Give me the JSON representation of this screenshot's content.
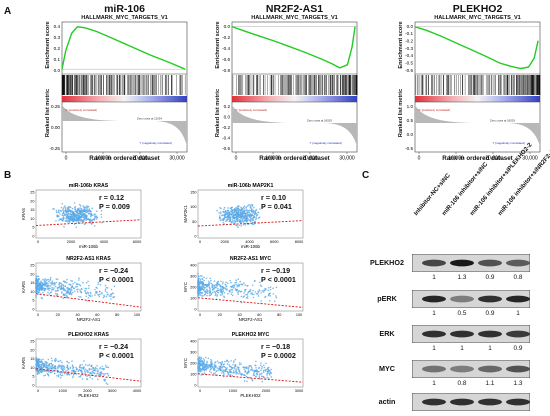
{
  "figure": {
    "panel_a": {
      "letter": "A",
      "plots": [
        {
          "title": "miR-106",
          "subtitle": "HALLMARK_MYC_TARGETS_V1",
          "es_label": "Enrichment score",
          "metric_label": "Ranked list metric",
          "x_label": "Rank in ordered dataset",
          "es_ticks": [
            "0.4",
            "0.3",
            "0.2",
            "0.1",
            "0.0"
          ],
          "metric_ticks": [
            "0.25",
            "0.00",
            "-0.25"
          ],
          "x_ticks": [
            "0",
            "10,000",
            "20,000",
            "30,000"
          ],
          "pos_label": "'h' (positively correlated)",
          "neg_label": "'l' (negatively correlated)",
          "zero_label": "Zero cross at 12034",
          "curve": "positive",
          "chart_data": {
            "type": "line",
            "xlabel": "Rank in ordered dataset",
            "ylabel": "Enrichment score",
            "x": [
              0,
              1000,
              2500,
              4000,
              6000,
              9000,
              13000,
              18000,
              23000,
              28000,
              32000
            ],
            "y": [
              0.0,
              0.2,
              0.38,
              0.45,
              0.44,
              0.4,
              0.33,
              0.24,
              0.15,
              0.07,
              0.0
            ],
            "ylim": [
              -0.03,
              0.48
            ],
            "xlim": [
              0,
              32500
            ]
          }
        },
        {
          "title": "NR2F2-AS1",
          "subtitle": "HALLMARK_MYC_TARGETS_V1",
          "es_label": "Enrichment score",
          "metric_label": "Ranked list metric",
          "x_label": "Rank in ordered dataset",
          "es_ticks": [
            "0.0",
            "-0.2",
            "-0.4",
            "-0.6",
            "-0.8"
          ],
          "metric_ticks": [
            "0.2",
            "0.0",
            "-0.2",
            "-0.4",
            "-0.6"
          ],
          "x_ticks": [
            "0",
            "10,000",
            "20,000",
            "30,000"
          ],
          "pos_label": "'h' (positively correlated)",
          "neg_label": "'l' (negatively correlated)",
          "zero_label": "Zero cross at 16529",
          "curve": "negative",
          "chart_data": {
            "type": "line",
            "xlabel": "Rank in ordered dataset",
            "ylabel": "Enrichment score",
            "x": [
              0,
              3000,
              7000,
              11000,
              15000,
              19000,
              23000,
              26000,
              28000,
              30000,
              31200,
              32000
            ],
            "y": [
              0.0,
              -0.08,
              -0.18,
              -0.28,
              -0.39,
              -0.5,
              -0.62,
              -0.72,
              -0.8,
              -0.74,
              -0.4,
              0.0
            ],
            "ylim": [
              -0.88,
              0.05
            ],
            "xlim": [
              0,
              32500
            ]
          }
        },
        {
          "title": "PLEKHO2",
          "subtitle": "HALLMARK_MYC_TARGETS_V1",
          "es_label": "Enrichment score",
          "metric_label": "Ranked list metric",
          "x_label": "Rank in ordered dataset",
          "es_ticks": [
            "0.0",
            "-0.1",
            "-0.2",
            "-0.3",
            "-0.4",
            "-0.5",
            "-0.6"
          ],
          "metric_ticks": [
            "1.0",
            "0.5",
            "0.0",
            "-0.5"
          ],
          "x_ticks": [
            "0",
            "10,000",
            "20,000",
            "30,000"
          ],
          "pos_label": "'h' (positively correlated)",
          "neg_label": "'l' (negatively correlated)",
          "zero_label": "Zero cross at 16529",
          "curve": "negative2",
          "chart_data": {
            "type": "line",
            "xlabel": "Rank in ordered dataset",
            "ylabel": "Enrichment score",
            "x": [
              0,
              3000,
              7000,
              11000,
              15000,
              19000,
              22000,
              25000,
              27500,
              29500,
              31000,
              32000
            ],
            "y": [
              0.0,
              -0.05,
              -0.14,
              -0.24,
              -0.34,
              -0.44,
              -0.52,
              -0.57,
              -0.6,
              -0.58,
              -0.45,
              -0.2
            ],
            "ylim": [
              -0.65,
              0.04
            ],
            "xlim": [
              0,
              32500
            ]
          }
        }
      ]
    },
    "panel_b": {
      "letter": "B",
      "scatters": [
        {
          "title": "miR-106b    KRAS",
          "xlabel": "miR-106b",
          "ylabel": "KRAS",
          "r": "r = 0.12",
          "p": "P = 0.009",
          "x_ticks": [
            "0",
            "2000",
            "4000",
            "6000"
          ],
          "y_ticks": [
            "25",
            "20",
            "15",
            "10",
            "5",
            "0"
          ],
          "slope": 0.12,
          "shape": "cloud",
          "chart_data": {
            "type": "scatter",
            "xlabel": "miR-106b",
            "ylabel": "KRAS",
            "xlim": [
              0,
              6000
            ],
            "ylim": [
              0,
              25
            ],
            "trend": {
              "x": [
                0,
                6000
              ],
              "y": [
                6.5,
                9.5
              ]
            }
          }
        },
        {
          "title": "miR-106b    MAP2K1",
          "xlabel": "miR-106b",
          "ylabel": "MAP2K1",
          "r": "r = 0.10",
          "p": "P = 0.041",
          "x_ticks": [
            "0",
            "2000",
            "4000",
            "6000",
            "8000"
          ],
          "y_ticks": [
            "150",
            "100",
            "50",
            "0"
          ],
          "slope": 0.1,
          "shape": "cloud",
          "chart_data": {
            "type": "scatter",
            "xlabel": "miR-106b",
            "ylabel": "MAP2K1",
            "xlim": [
              0,
              8000
            ],
            "ylim": [
              0,
              160
            ],
            "trend": {
              "x": [
                0,
                8000
              ],
              "y": [
                40,
                58
              ]
            }
          }
        },
        {
          "title": "NR2F2-AS1    KRAS",
          "xlabel": "NR2F2-AS1",
          "ylabel": "KARS",
          "r": "r = −0.24",
          "p": "P < 0.0001",
          "x_ticks": [
            "0",
            "20",
            "40",
            "60",
            "80",
            "100"
          ],
          "y_ticks": [
            "25",
            "20",
            "15",
            "10",
            "5",
            "0"
          ],
          "slope": -0.24,
          "shape": "decay",
          "chart_data": {
            "type": "scatter",
            "xlabel": "NR2F2-AS1",
            "ylabel": "KARS",
            "xlim": [
              0,
              100
            ],
            "ylim": [
              0,
              25
            ],
            "trend": {
              "x": [
                0,
                100
              ],
              "y": [
                9,
                2
              ]
            }
          }
        },
        {
          "title": "NR2F2-AS1    MYC",
          "xlabel": "NR2F2-AS1",
          "ylabel": "MYC",
          "r": "r = −0.19",
          "p": "P < 0.0001",
          "x_ticks": [
            "0",
            "20",
            "40",
            "60",
            "80",
            "100"
          ],
          "y_ticks": [
            "400",
            "300",
            "200",
            "100",
            "0"
          ],
          "slope": -0.19,
          "shape": "decay",
          "chart_data": {
            "type": "scatter",
            "xlabel": "NR2F2-AS1",
            "ylabel": "MYC",
            "xlim": [
              0,
              100
            ],
            "ylim": [
              0,
              400
            ],
            "trend": {
              "x": [
                0,
                100
              ],
              "y": [
                110,
                30
              ]
            }
          }
        },
        {
          "title": "PLEKHO2    KRAS",
          "xlabel": "PLEKHO2",
          "ylabel": "KARS",
          "r": "r = −0.24",
          "p": "P < 0.0001",
          "x_ticks": [
            "0",
            "1000",
            "2000",
            "3000",
            "4000"
          ],
          "y_ticks": [
            "25",
            "20",
            "15",
            "10",
            "5",
            "0"
          ],
          "slope": -0.24,
          "shape": "decay2",
          "chart_data": {
            "type": "scatter",
            "xlabel": "PLEKHO2",
            "ylabel": "KARS",
            "xlim": [
              0,
              4000
            ],
            "ylim": [
              0,
              25
            ],
            "trend": {
              "x": [
                0,
                4000
              ],
              "y": [
                9.5,
                3
              ]
            }
          }
        },
        {
          "title": "PLEKHO2    MYC",
          "xlabel": "PLEKHO2",
          "ylabel": "MYC",
          "r": "r = −0.18",
          "p": "P = 0.0002",
          "x_ticks": [
            "0",
            "1000",
            "2000",
            "3000"
          ],
          "y_ticks": [
            "400",
            "300",
            "200",
            "100",
            "0"
          ],
          "slope": -0.18,
          "shape": "decay2",
          "chart_data": {
            "type": "scatter",
            "xlabel": "PLEKHO2",
            "ylabel": "MYC",
            "xlim": [
              0,
              3000
            ],
            "ylim": [
              0,
              400
            ],
            "trend": {
              "x": [
                0,
                3000
              ],
              "y": [
                110,
                40
              ]
            }
          }
        }
      ]
    },
    "panel_c": {
      "letter": "C",
      "lanes": [
        "Inhibitor-NC+siNC",
        "miR-106 inhibitor+siNC",
        "miR-106 inhibitor+siPLEKHO2-2",
        "miR-106 inhibitor+siNR2F2-AS1-2"
      ],
      "blots": [
        {
          "label": "PLEKHO2",
          "values": [
            "1",
            "1.3",
            "0.9",
            "0.8"
          ],
          "intensity": [
            0.75,
            0.95,
            0.7,
            0.65
          ]
        },
        {
          "label": "pERK",
          "values": [
            "1",
            "0.5",
            "0.9",
            "1"
          ],
          "intensity": [
            0.9,
            0.5,
            0.85,
            0.9
          ]
        },
        {
          "label": "ERK",
          "values": [
            "1",
            "1",
            "1",
            "0.9"
          ],
          "intensity": [
            0.85,
            0.85,
            0.85,
            0.8
          ]
        },
        {
          "label": "MYC",
          "values": [
            "1",
            "0.8",
            "1.1",
            "1.3"
          ],
          "intensity": [
            0.55,
            0.5,
            0.6,
            0.7
          ]
        },
        {
          "label": "actin",
          "values": [],
          "intensity": [
            0.85,
            0.85,
            0.85,
            0.85
          ]
        }
      ]
    },
    "colors": {
      "es_curve": "#22cc22",
      "scatter_point": "#5aa9e6",
      "trend_line": "#dd1111",
      "heat_red": "#e0303a",
      "heat_blue": "#3040c0"
    }
  }
}
